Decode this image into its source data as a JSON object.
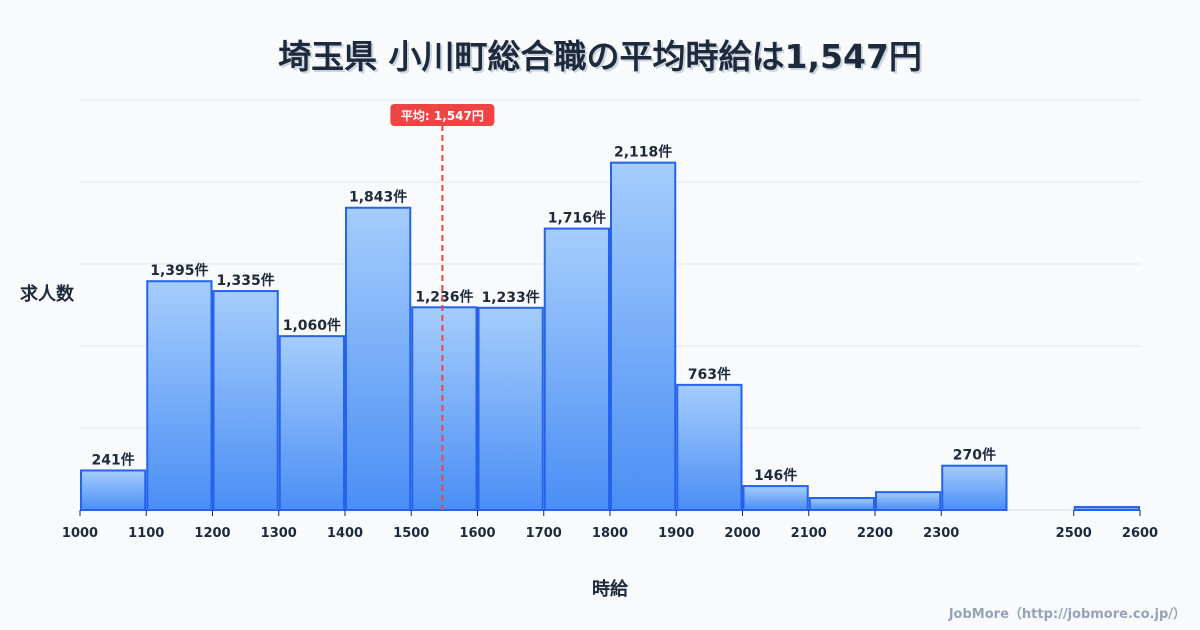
{
  "chart_data": {
    "type": "bar",
    "title": "埼玉県 小川町総合職の平均時給は1,547円",
    "xlabel": "時給",
    "ylabel": "求人数",
    "bins": [
      {
        "from": 1000,
        "to": 1100,
        "value": 241,
        "label": "241件"
      },
      {
        "from": 1100,
        "to": 1200,
        "value": 1395,
        "label": "1,395件"
      },
      {
        "from": 1200,
        "to": 1300,
        "value": 1335,
        "label": "1,335件"
      },
      {
        "from": 1300,
        "to": 1400,
        "value": 1060,
        "label": "1,060件"
      },
      {
        "from": 1400,
        "to": 1500,
        "value": 1843,
        "label": "1,843件"
      },
      {
        "from": 1500,
        "to": 1600,
        "value": 1236,
        "label": "1,236件"
      },
      {
        "from": 1600,
        "to": 1700,
        "value": 1233,
        "label": "1,233件"
      },
      {
        "from": 1700,
        "to": 1800,
        "value": 1716,
        "label": "1,716件"
      },
      {
        "from": 1800,
        "to": 1900,
        "value": 2118,
        "label": "2,118件"
      },
      {
        "from": 1900,
        "to": 2000,
        "value": 763,
        "label": "763件"
      },
      {
        "from": 2000,
        "to": 2100,
        "value": 146,
        "label": "146件"
      },
      {
        "from": 2100,
        "to": 2200,
        "value": 73,
        "label": ""
      },
      {
        "from": 2200,
        "to": 2300,
        "value": 109,
        "label": ""
      },
      {
        "from": 2300,
        "to": 2400,
        "value": 270,
        "label": "270件"
      },
      {
        "from": 2500,
        "to": 2600,
        "value": 18,
        "label": ""
      }
    ],
    "xticks": [
      1000,
      1100,
      1200,
      1300,
      1400,
      1500,
      1600,
      1700,
      1800,
      1900,
      2000,
      2100,
      2200,
      2300,
      2500,
      2600
    ],
    "xlim": [
      1000,
      2600
    ],
    "ylim": [
      0,
      2500
    ],
    "grid": true,
    "mean": {
      "value": 1547,
      "label": "平均: 1,547円"
    },
    "colors": {
      "bar_top": "#a5cdfc",
      "bar_bottom": "#4b8ef5",
      "bar_stroke": "#2563eb",
      "mean": "#ef4444"
    }
  },
  "credit": "JobMore（http://jobmore.co.jp/）"
}
